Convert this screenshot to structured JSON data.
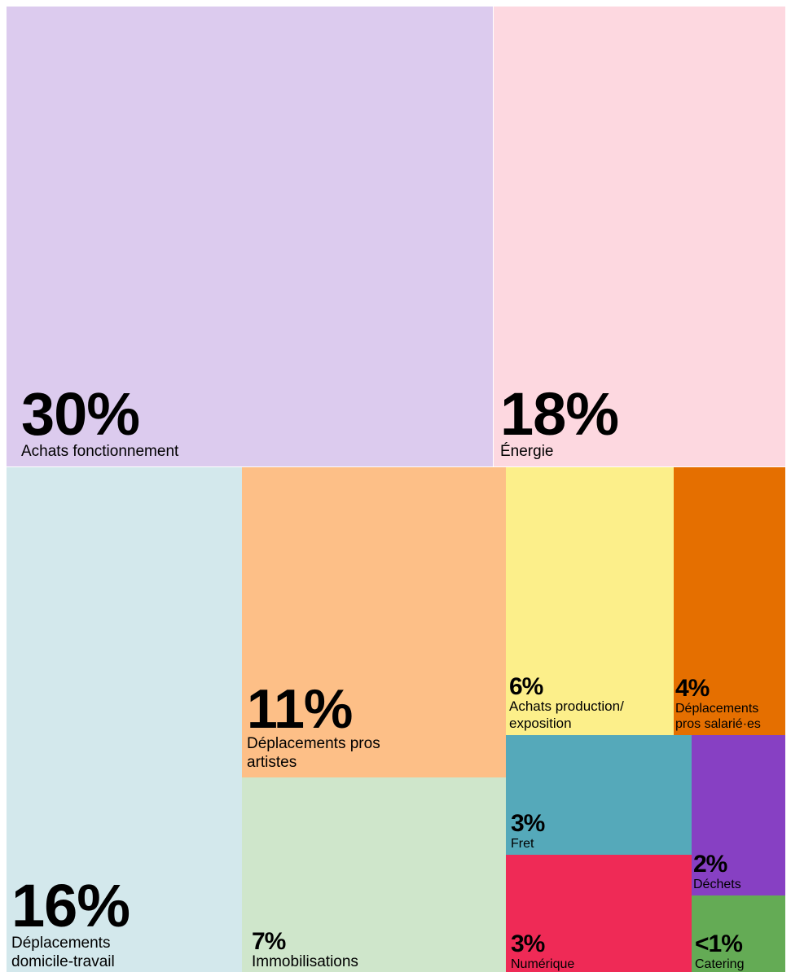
{
  "chart_data": {
    "type": "treemap",
    "categories": [
      "Achats fonctionnement",
      "Énergie",
      "Déplacements domicile-travail",
      "Déplacements pros artistes",
      "Immobilisations",
      "Achats production/ exposition",
      "Déplacements pros salarié·es",
      "Fret",
      "Numérique",
      "Déchets",
      "Catering"
    ],
    "values": [
      30,
      18,
      16,
      11,
      7,
      6,
      4,
      3,
      3,
      2,
      0.5
    ],
    "value_labels": [
      "30%",
      "18%",
      "16%",
      "11%",
      "7%",
      "6%",
      "4%",
      "3%",
      "3%",
      "2%",
      "<1%"
    ],
    "colors": [
      "#dccbee",
      "#fdd8e0",
      "#d3e8ec",
      "#fdbf87",
      "#cfe6cb",
      "#fcef8a",
      "#e56f00",
      "#55a9ba",
      "#ef2a56",
      "#8740c3",
      "#64ab55"
    ]
  }
}
